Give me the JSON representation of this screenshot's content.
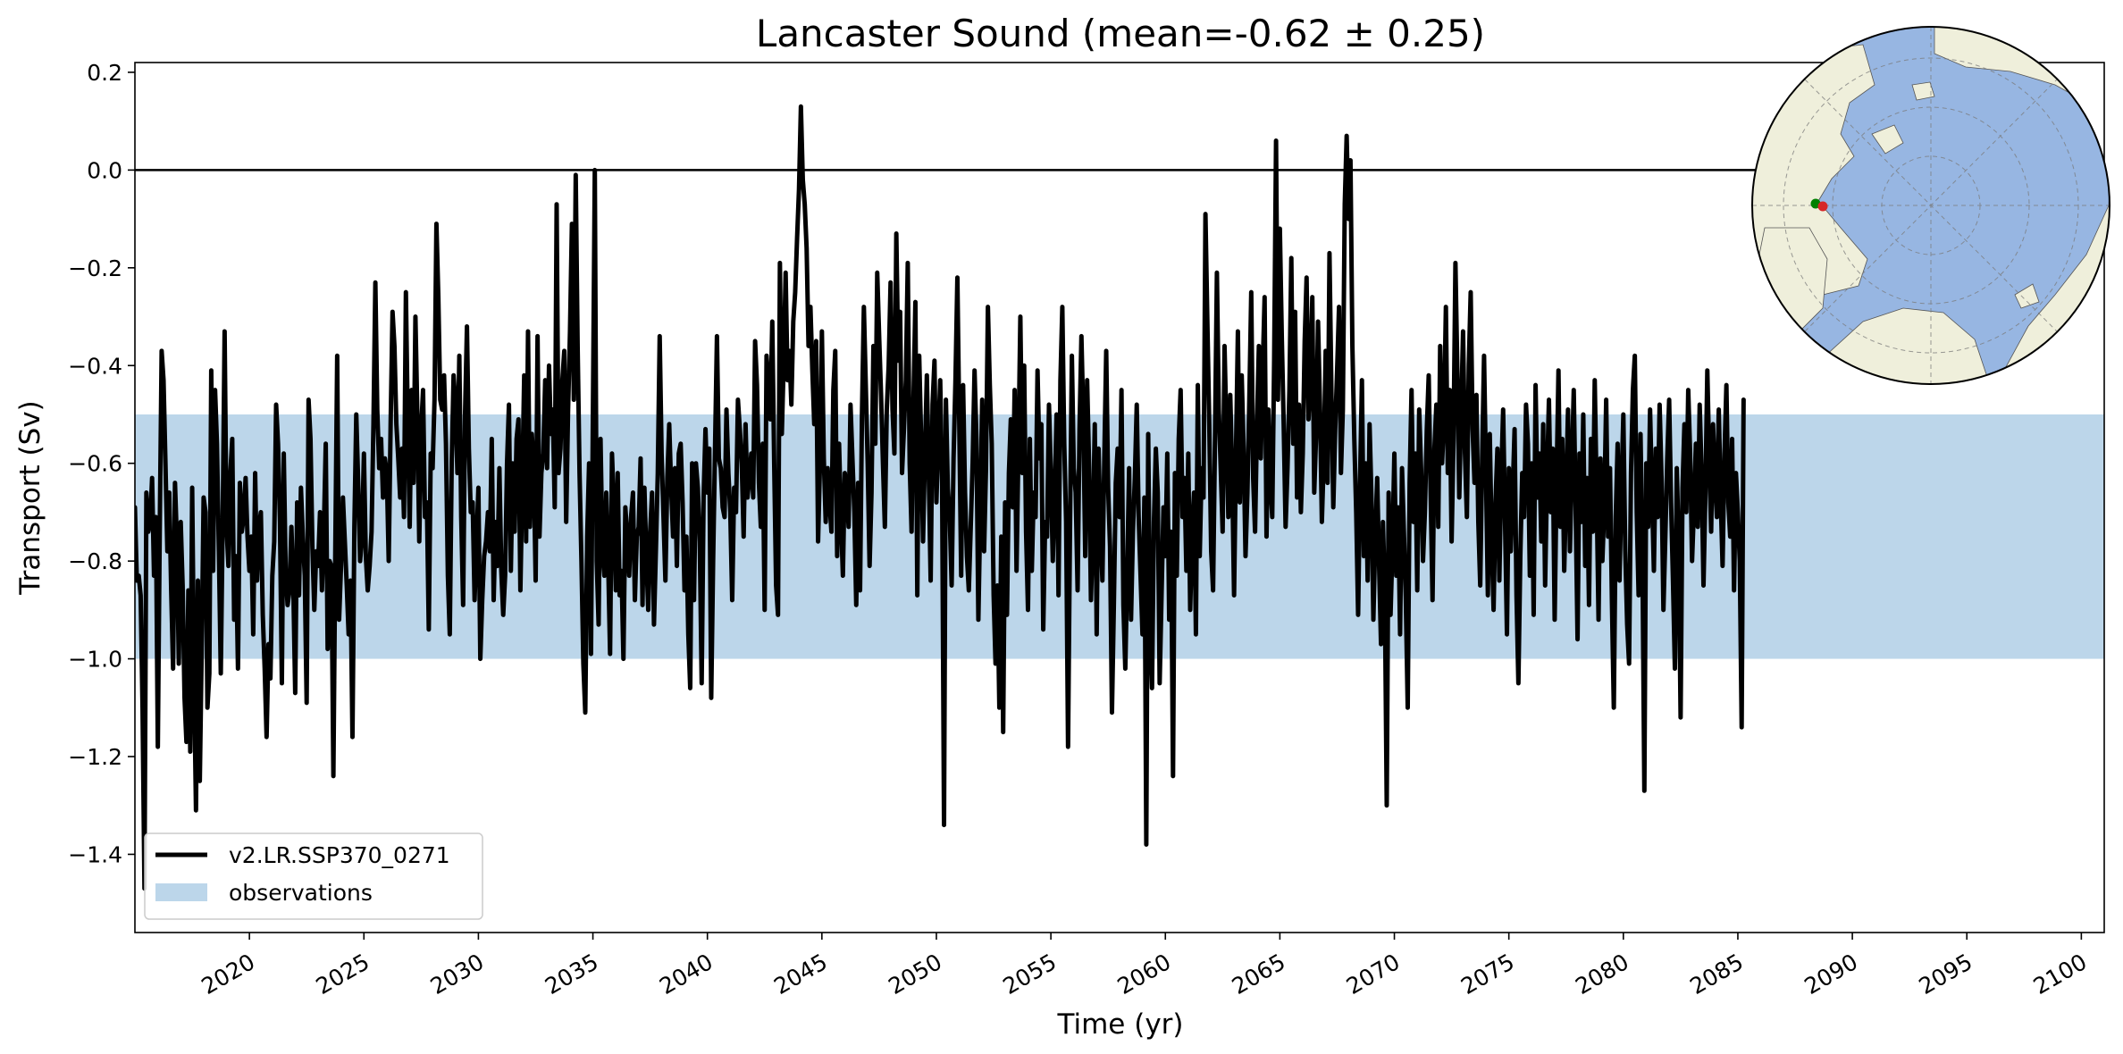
{
  "chart_data": {
    "type": "line",
    "title": "Lancaster Sound (mean=-0.62 ± 0.25)",
    "xlabel": "Time (yr)",
    "ylabel": "Transport (Sv)",
    "xlim": [
      2015.0,
      2101.0
    ],
    "ylim": [
      -1.56,
      0.22
    ],
    "xticks": [
      2020,
      2025,
      2030,
      2035,
      2040,
      2045,
      2050,
      2055,
      2060,
      2065,
      2070,
      2075,
      2080,
      2085,
      2090,
      2095,
      2100
    ],
    "xtick_labels": [
      "2020",
      "2025",
      "2030",
      "2035",
      "2040",
      "2045",
      "2050",
      "2055",
      "2060",
      "2065",
      "2070",
      "2075",
      "2080",
      "2085",
      "2090",
      "2095",
      "2100"
    ],
    "yticks": [
      0.2,
      0.0,
      -0.2,
      -0.4,
      -0.6,
      -0.8,
      -1.0,
      -1.2,
      -1.4
    ],
    "ytick_labels": [
      "0.2",
      "0.0",
      "−0.2",
      "−0.4",
      "−0.6",
      "−0.8",
      "−1.0",
      "−1.2",
      "−1.4"
    ],
    "zero_line": 0.0,
    "observation_band": {
      "name": "observations",
      "ymin": -1.0,
      "ymax": -0.5,
      "color": "#bcd6ea"
    },
    "series": [
      {
        "name": "v2.LR.SSP370_0271",
        "color": "#000000",
        "x_start": 2015.0,
        "x_step": 0.0833333,
        "values": [
          -0.69,
          -0.84,
          -0.83,
          -0.87,
          -1.1,
          -1.47,
          -0.66,
          -0.74,
          -0.72,
          -0.63,
          -0.83,
          -0.71,
          -1.18,
          -0.74,
          -0.37,
          -0.43,
          -0.6,
          -0.78,
          -0.66,
          -0.86,
          -1.02,
          -0.64,
          -0.76,
          -1.01,
          -0.72,
          -0.85,
          -1.08,
          -1.17,
          -0.86,
          -1.19,
          -0.65,
          -1.04,
          -1.31,
          -0.84,
          -1.25,
          -0.98,
          -0.67,
          -0.7,
          -1.1,
          -1.03,
          -0.41,
          -0.82,
          -0.45,
          -0.56,
          -0.78,
          -1.03,
          -0.72,
          -0.33,
          -0.73,
          -0.81,
          -0.62,
          -0.55,
          -0.92,
          -0.79,
          -1.02,
          -0.64,
          -0.74,
          -0.71,
          -0.63,
          -0.75,
          -0.82,
          -0.75,
          -0.95,
          -0.62,
          -0.84,
          -0.73,
          -0.7,
          -0.91,
          -1.02,
          -1.16,
          -0.97,
          -1.04,
          -0.83,
          -0.76,
          -0.48,
          -0.56,
          -0.72,
          -1.05,
          -0.58,
          -0.82,
          -0.89,
          -0.86,
          -0.73,
          -0.85,
          -1.07,
          -0.68,
          -0.87,
          -0.65,
          -0.75,
          -0.83,
          -1.09,
          -0.47,
          -0.55,
          -0.77,
          -0.9,
          -0.78,
          -0.81,
          -0.7,
          -0.86,
          -0.74,
          -0.56,
          -0.98,
          -0.8,
          -0.81,
          -1.24,
          -0.78,
          -0.38,
          -0.92,
          -0.81,
          -0.67,
          -0.76,
          -0.85,
          -0.95,
          -0.84,
          -1.16,
          -0.73,
          -0.5,
          -0.64,
          -0.8,
          -0.75,
          -0.58,
          -0.79,
          -0.86,
          -0.81,
          -0.74,
          -0.52,
          -0.23,
          -0.49,
          -0.61,
          -0.55,
          -0.67,
          -0.59,
          -0.62,
          -0.8,
          -0.52,
          -0.29,
          -0.36,
          -0.52,
          -0.59,
          -0.67,
          -0.57,
          -0.71,
          -0.25,
          -0.52,
          -0.73,
          -0.45,
          -0.64,
          -0.3,
          -0.5,
          -0.76,
          -0.53,
          -0.45,
          -0.71,
          -0.68,
          -0.94,
          -0.58,
          -0.61,
          -0.47,
          -0.11,
          -0.26,
          -0.47,
          -0.49,
          -0.42,
          -0.56,
          -0.83,
          -0.95,
          -0.6,
          -0.42,
          -0.48,
          -0.62,
          -0.38,
          -0.71,
          -0.89,
          -0.5,
          -0.32,
          -0.57,
          -0.7,
          -0.68,
          -0.88,
          -0.76,
          -0.65,
          -1.0,
          -0.88,
          -0.79,
          -0.76,
          -0.7,
          -0.78,
          -0.55,
          -0.88,
          -0.72,
          -0.81,
          -0.61,
          -0.82,
          -0.91,
          -0.83,
          -0.6,
          -0.48,
          -0.82,
          -0.6,
          -0.74,
          -0.55,
          -0.51,
          -0.86,
          -0.64,
          -0.42,
          -0.76,
          -0.33,
          -0.73,
          -0.54,
          -0.61,
          -0.84,
          -0.34,
          -0.75,
          -0.62,
          -0.58,
          -0.43,
          -0.61,
          -0.4,
          -0.54,
          -0.49,
          -0.69,
          -0.07,
          -0.62,
          -0.57,
          -0.43,
          -0.37,
          -0.72,
          -0.49,
          -0.33,
          -0.11,
          -0.47,
          -0.01,
          -0.36,
          -0.62,
          -0.8,
          -1.01,
          -1.11,
          -0.75,
          -0.6,
          -0.99,
          -0.5,
          0.0,
          -0.8,
          -0.93,
          -0.55,
          -0.78,
          -0.83,
          -0.66,
          -0.8,
          -0.99,
          -0.58,
          -0.69,
          -0.86,
          -0.62,
          -0.87,
          -0.82,
          -1.0,
          -0.69,
          -0.75,
          -0.83,
          -0.71,
          -0.66,
          -0.88,
          -0.75,
          -0.73,
          -0.59,
          -0.89,
          -0.65,
          -0.79,
          -0.9,
          -0.74,
          -0.66,
          -0.93,
          -0.78,
          -0.62,
          -0.34,
          -0.58,
          -0.71,
          -0.84,
          -0.63,
          -0.52,
          -0.65,
          -0.75,
          -0.61,
          -0.81,
          -0.58,
          -0.56,
          -0.68,
          -0.86,
          -0.75,
          -0.95,
          -1.06,
          -0.6,
          -0.88,
          -0.6,
          -0.65,
          -0.76,
          -1.05,
          -0.67,
          -0.53,
          -0.66,
          -0.57,
          -1.08,
          -0.8,
          -0.57,
          -0.34,
          -0.59,
          -0.61,
          -0.69,
          -0.71,
          -0.49,
          -0.62,
          -0.7,
          -0.88,
          -0.65,
          -0.7,
          -0.47,
          -0.53,
          -0.6,
          -0.75,
          -0.52,
          -0.67,
          -0.63,
          -0.58,
          -0.67,
          -0.35,
          -0.44,
          -0.64,
          -0.73,
          -0.56,
          -0.9,
          -0.38,
          -0.44,
          -0.51,
          -0.31,
          -0.6,
          -0.85,
          -0.91,
          -0.19,
          -0.54,
          -0.39,
          -0.21,
          -0.43,
          -0.37,
          -0.48,
          -0.31,
          -0.25,
          -0.14,
          -0.04,
          0.13,
          -0.02,
          -0.07,
          -0.16,
          -0.36,
          -0.28,
          -0.41,
          -0.52,
          -0.35,
          -0.76,
          -0.6,
          -0.33,
          -0.59,
          -0.72,
          -0.61,
          -0.68,
          -0.74,
          -0.45,
          -0.37,
          -0.79,
          -0.56,
          -0.71,
          -0.83,
          -0.62,
          -0.65,
          -0.73,
          -0.48,
          -0.59,
          -0.7,
          -0.89,
          -0.64,
          -0.86,
          -0.5,
          -0.28,
          -0.44,
          -0.6,
          -0.81,
          -0.66,
          -0.36,
          -0.56,
          -0.21,
          -0.34,
          -0.46,
          -0.6,
          -0.73,
          -0.49,
          -0.4,
          -0.23,
          -0.49,
          -0.58,
          -0.13,
          -0.39,
          -0.29,
          -0.62,
          -0.53,
          -0.43,
          -0.19,
          -0.6,
          -0.74,
          -0.47,
          -0.27,
          -0.87,
          -0.38,
          -0.55,
          -0.76,
          -0.58,
          -0.42,
          -0.62,
          -0.84,
          -0.48,
          -0.39,
          -0.68,
          -0.55,
          -0.43,
          -0.64,
          -1.34,
          -0.47,
          -0.65,
          -0.71,
          -0.85,
          -0.59,
          -0.43,
          -0.22,
          -0.52,
          -0.83,
          -0.44,
          -0.66,
          -0.79,
          -0.86,
          -0.73,
          -0.6,
          -0.41,
          -0.55,
          -0.92,
          -0.7,
          -0.47,
          -0.78,
          -0.61,
          -0.28,
          -0.44,
          -0.56,
          -0.87,
          -1.01,
          -0.85,
          -1.1,
          -0.75,
          -1.15,
          -0.68,
          -0.91,
          -0.62,
          -0.51,
          -0.69,
          -0.45,
          -0.82,
          -0.57,
          -0.3,
          -0.62,
          -0.4,
          -0.74,
          -0.9,
          -0.55,
          -0.82,
          -0.66,
          -0.71,
          -0.41,
          -0.59,
          -0.52,
          -0.94,
          -0.72,
          -0.75,
          -0.48,
          -0.62,
          -0.8,
          -0.66,
          -0.5,
          -0.87,
          -0.43,
          -0.28,
          -0.56,
          -0.72,
          -1.18,
          -0.74,
          -0.38,
          -0.61,
          -0.66,
          -0.86,
          -0.53,
          -0.34,
          -0.51,
          -0.79,
          -0.43,
          -0.6,
          -0.88,
          -0.74,
          -0.52,
          -0.95,
          -0.57,
          -0.73,
          -0.84,
          -0.59,
          -0.37,
          -0.65,
          -0.77,
          -1.11,
          -0.89,
          -0.64,
          -0.57,
          -0.71,
          -0.45,
          -0.89,
          -1.02,
          -0.82,
          -0.61,
          -0.92,
          -0.74,
          -0.63,
          -0.48,
          -0.71,
          -0.83,
          -0.95,
          -0.67,
          -1.38,
          -0.54,
          -0.94,
          -1.06,
          -0.72,
          -0.57,
          -0.66,
          -1.05,
          -0.87,
          -0.69,
          -0.79,
          -0.58,
          -0.92,
          -0.74,
          -1.24,
          -0.62,
          -0.83,
          -0.55,
          -0.45,
          -0.71,
          -0.63,
          -0.82,
          -0.58,
          -0.9,
          -0.74,
          -0.66,
          -0.95,
          -0.44,
          -0.79,
          -0.61,
          -0.67,
          -0.09,
          -0.31,
          -0.52,
          -0.78,
          -0.86,
          -0.55,
          -0.21,
          -0.49,
          -0.61,
          -0.74,
          -0.36,
          -0.53,
          -0.71,
          -0.46,
          -0.62,
          -0.87,
          -0.58,
          -0.33,
          -0.68,
          -0.42,
          -0.57,
          -0.79,
          -0.66,
          -0.47,
          -0.25,
          -0.63,
          -0.74,
          -0.52,
          -0.36,
          -0.59,
          -0.41,
          -0.26,
          -0.75,
          -0.49,
          -0.64,
          -0.71,
          -0.39,
          0.06,
          -0.47,
          -0.12,
          -0.34,
          -0.52,
          -0.73,
          -0.61,
          -0.45,
          -0.18,
          -0.56,
          -0.29,
          -0.67,
          -0.48,
          -0.7,
          -0.58,
          -0.35,
          -0.22,
          -0.51,
          -0.43,
          -0.26,
          -0.66,
          -0.54,
          -0.31,
          -0.48,
          -0.72,
          -0.59,
          -0.37,
          -0.64,
          -0.17,
          -0.45,
          -0.69,
          -0.53,
          -0.41,
          -0.28,
          -0.62,
          -0.49,
          -0.07,
          0.07,
          -0.1,
          0.02,
          -0.36,
          -0.55,
          -0.7,
          -0.91,
          -0.64,
          -0.43,
          -0.79,
          -0.6,
          -0.84,
          -0.52,
          -0.67,
          -0.92,
          -0.75,
          -0.63,
          -0.81,
          -0.97,
          -0.72,
          -0.86,
          -1.3,
          -0.66,
          -0.91,
          -0.77,
          -0.58,
          -0.83,
          -0.69,
          -0.95,
          -0.61,
          -0.74,
          -0.88,
          -1.1,
          -0.64,
          -0.45,
          -0.72,
          -0.58,
          -0.86,
          -0.49,
          -0.61,
          -0.8,
          -0.7,
          -0.53,
          -0.42,
          -0.66,
          -0.88,
          -0.57,
          -0.48,
          -0.73,
          -0.36,
          -0.6,
          -0.51,
          -0.28,
          -0.62,
          -0.45,
          -0.76,
          -0.55,
          -0.19,
          -0.41,
          -0.67,
          -0.5,
          -0.33,
          -0.58,
          -0.71,
          -0.4,
          -0.25,
          -0.53,
          -0.64,
          -0.46,
          -0.72,
          -0.85,
          -0.59,
          -0.38,
          -0.62,
          -0.87,
          -0.54,
          -0.76,
          -0.9,
          -0.68,
          -0.57,
          -0.84,
          -0.63,
          -0.49,
          -0.72,
          -0.95,
          -0.61,
          -0.78,
          -0.66,
          -0.53,
          -0.87,
          -1.05,
          -0.79,
          -0.62,
          -0.71,
          -0.48,
          -0.56,
          -0.83,
          -0.6,
          -0.91,
          -0.44,
          -0.67,
          -0.58,
          -0.76,
          -0.52,
          -0.85,
          -0.63,
          -0.47,
          -0.7,
          -0.57,
          -0.92,
          -0.64,
          -0.41,
          -0.73,
          -0.55,
          -0.82,
          -0.66,
          -0.49,
          -0.78,
          -0.61,
          -0.45,
          -0.69,
          -0.96,
          -0.58,
          -0.72,
          -0.5,
          -0.81,
          -0.63,
          -0.89,
          -0.55,
          -0.74,
          -0.43,
          -0.66,
          -0.92,
          -0.59,
          -0.8,
          -0.69,
          -0.47,
          -0.75,
          -0.61,
          -0.88,
          -1.1,
          -0.71,
          -0.56,
          -0.84,
          -0.65,
          -0.5,
          -0.78,
          -0.93,
          -1.01,
          -0.62,
          -0.45,
          -0.38,
          -0.7,
          -0.87,
          -0.54,
          -0.79,
          -1.27,
          -0.6,
          -0.73,
          -0.49,
          -0.66,
          -0.82,
          -0.57,
          -0.71,
          -0.48,
          -0.63,
          -0.9,
          -0.75,
          -0.59,
          -0.47,
          -0.68,
          -0.84,
          -1.02,
          -0.61,
          -0.77,
          -1.12,
          -0.65,
          -0.52,
          -0.7,
          -0.45,
          -0.58,
          -0.8,
          -0.69,
          -0.56,
          -0.73,
          -0.48,
          -0.62,
          -0.85,
          -0.66,
          -0.41,
          -0.59,
          -0.74,
          -0.52,
          -0.63,
          -0.71,
          -0.49,
          -0.67,
          -0.81,
          -0.58,
          -0.44,
          -0.68,
          -0.75,
          -0.55,
          -0.86,
          -0.62,
          -0.7,
          -0.8,
          -1.14,
          -0.47
        ]
      }
    ],
    "legend": {
      "location": "lower-left",
      "entries": [
        {
          "label": "v2.LR.SSP370_0271",
          "kind": "line",
          "color": "#000000"
        },
        {
          "label": "observations",
          "kind": "patch",
          "color": "#bcd6ea"
        }
      ]
    },
    "inset_map": {
      "projection": "north-polar-stereographic",
      "ocean_color": "#97b6e2",
      "land_color": "#efefdb",
      "markers": [
        {
          "name": "section-start",
          "color": "#008000"
        },
        {
          "name": "section-end",
          "color": "#d62728"
        }
      ]
    }
  }
}
